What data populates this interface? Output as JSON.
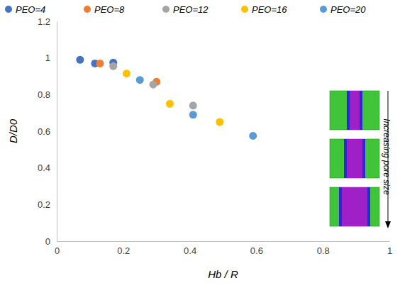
{
  "chart_data": {
    "type": "scatter",
    "x_label": "Hb / R",
    "y_label": "D/D0",
    "annotation": "Increasing pore size",
    "xlim": [
      0,
      1
    ],
    "xticks": [
      0,
      0.2,
      0.4,
      0.6,
      0.8,
      1
    ],
    "ylim": [
      0,
      1.2
    ],
    "yticks": [
      0,
      0.2,
      0.4,
      0.6,
      0.8,
      1,
      1.2
    ],
    "grid": false,
    "legend": "top",
    "marker": "circle",
    "series": [
      {
        "name": "PEO=4",
        "color": "#4472c4",
        "x": [
          0.07,
          0.115,
          0.17
        ],
        "values": [
          0.99,
          0.97,
          0.975
        ]
      },
      {
        "name": "PEO=8",
        "color": "#ed7d31",
        "x": [
          0.13,
          0.3
        ],
        "values": [
          0.97,
          0.87
        ]
      },
      {
        "name": "PEO=12",
        "color": "#a5a5a5",
        "x": [
          0.17,
          0.29,
          0.41
        ],
        "values": [
          0.955,
          0.855,
          0.74
        ]
      },
      {
        "name": "PEO=16",
        "color": "#ffc000",
        "x": [
          0.21,
          0.34,
          0.49
        ],
        "values": [
          0.915,
          0.75,
          0.65
        ]
      },
      {
        "name": "PEO=20",
        "color": "#5b9bd5",
        "x": [
          0.25,
          0.41,
          0.59
        ],
        "values": [
          0.88,
          0.69,
          0.575
        ]
      }
    ]
  }
}
